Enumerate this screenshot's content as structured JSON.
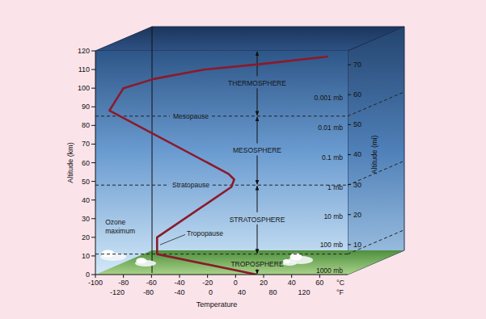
{
  "chart_data": {
    "type": "line",
    "x": [
      15,
      -56,
      -56,
      -3,
      -1,
      -5,
      -90,
      -80,
      -58,
      -22,
      19,
      66
    ],
    "series": [
      {
        "color": "#8b1a2b",
        "values": [
          0,
          11,
          20,
          47,
          51,
          54,
          88,
          100,
          105,
          110,
          113,
          117
        ]
      }
    ],
    "xlabel": "Temperature",
    "ylabel": "Altitude (km)",
    "y2label": "Altitude (mi)",
    "xlim": [
      -100,
      80
    ],
    "xticks": [
      -100,
      -80,
      -60,
      -40,
      -20,
      0,
      20,
      40,
      60
    ],
    "xunit": "°C",
    "x2lim": [
      -148,
      176
    ],
    "x2ticks": [
      -120,
      -80,
      -40,
      0,
      40,
      80,
      120
    ],
    "x2unit": "°F",
    "ylim": [
      0,
      120
    ],
    "yticks": [
      0,
      10,
      20,
      30,
      40,
      50,
      60,
      70,
      80,
      90,
      100,
      110,
      120
    ],
    "y2lim": [
      0,
      74.6
    ],
    "y2ticks": [
      10,
      20,
      30,
      40,
      50,
      60,
      70
    ],
    "layers": [
      {
        "name": "TROPOSPHERE",
        "bottom": 0,
        "top": 11
      },
      {
        "name": "STRATOSPHERE",
        "bottom": 11,
        "top": 48
      },
      {
        "name": "MESOSPHERE",
        "bottom": 48,
        "top": 85
      },
      {
        "name": "THERMOSPHERE",
        "bottom": 85,
        "top": 120
      }
    ],
    "boundaries": [
      {
        "label": "Tropopause",
        "altitude": 11
      },
      {
        "label": "Stratopause",
        "altitude": 48
      },
      {
        "label": "Mesopause",
        "altitude": 85
      }
    ],
    "pressure_levels": [
      {
        "label": "1000 mb",
        "altitude": 2
      },
      {
        "label": "100 mb",
        "altitude": 16
      },
      {
        "label": "10 mb",
        "altitude": 31
      },
      {
        "label": "1 mb",
        "altitude": 47
      },
      {
        "label": "0.1 mb",
        "altitude": 63
      },
      {
        "label": "0.01 mb",
        "altitude": 79
      },
      {
        "label": "0.001 mb",
        "altitude": 95
      }
    ],
    "annotations": [
      {
        "text": "Ozone maximum",
        "x": -93,
        "y": 27
      }
    ]
  }
}
